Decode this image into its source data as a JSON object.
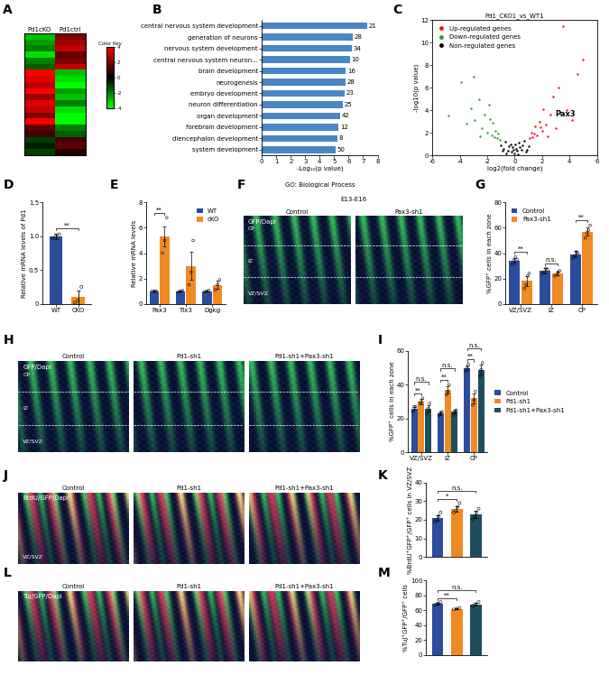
{
  "chart_data": [
    {
      "panel": "A",
      "type": "heatmap",
      "categories": [
        "Pd1cKO",
        "Pd1ctrl"
      ],
      "cells": [
        [
          -3,
          2
        ],
        [
          -2.5,
          2.5
        ],
        [
          -2,
          3
        ],
        [
          -3.5,
          1.5
        ],
        [
          -2,
          2
        ],
        [
          -1.5,
          3
        ],
        [
          4,
          -3
        ],
        [
          3.5,
          -3.5
        ],
        [
          3,
          -4
        ],
        [
          4,
          -2.5
        ],
        [
          2.5,
          -3
        ],
        [
          3.5,
          -2
        ],
        [
          3,
          -3.5
        ],
        [
          2,
          -4
        ],
        [
          4,
          -4
        ],
        [
          1.5,
          -2
        ],
        [
          1,
          -1.5
        ],
        [
          -1,
          1
        ],
        [
          -0.5,
          1.5
        ],
        [
          -1,
          0.5
        ]
      ],
      "colors": [
        "#00ff00",
        "#000000",
        "#ff0000"
      ],
      "colorbar": {
        "label": "Color Key",
        "range": [
          -4,
          4
        ],
        "ticks": [
          -4,
          -2,
          0,
          2,
          4
        ]
      }
    },
    {
      "panel": "B",
      "type": "bar",
      "orientation": "horizontal",
      "title": "GO: Biological Process",
      "xlabel": "-Log₁₀(p value)",
      "color": "#4a86c5",
      "categories": [
        "central nervous system development",
        "generation of neurons",
        "nervous system development",
        "central nervous system neuron...",
        "brain development",
        "neurogenesis",
        "embryo development",
        "neuron differentiation",
        "organ development",
        "forebrain development",
        "diencephalon development",
        "system development"
      ],
      "values": [
        7.3,
        6.3,
        6.2,
        6.1,
        5.8,
        5.8,
        5.7,
        5.6,
        5.4,
        5.3,
        5.2,
        5.1
      ],
      "counts": [
        21,
        28,
        34,
        10,
        16,
        28,
        23,
        25,
        42,
        12,
        8,
        50
      ],
      "xlim": [
        0,
        8
      ],
      "xticks": [
        0,
        1,
        2,
        3,
        4,
        5,
        6,
        7,
        8
      ]
    },
    {
      "panel": "C",
      "type": "scatter",
      "title": "Pd1_CKO1_vs_WT1",
      "xlabel": "log2(fold change)",
      "ylabel": "-log10(p value)",
      "xlim": [
        -6,
        6
      ],
      "xticks": [
        -6,
        -4,
        -2,
        0,
        2,
        4,
        6
      ],
      "ylim": [
        0,
        12
      ],
      "yticks": [
        0,
        2,
        4,
        6,
        8,
        10,
        12
      ],
      "legend": "upper left",
      "series": [
        {
          "name": "Up-regulated genes",
          "color": "#e41a1c",
          "x": [
            1.1,
            1.2,
            1.3,
            1.5,
            1.6,
            1.8,
            2.0,
            2.1,
            2.3,
            2.6,
            2.8,
            3.0,
            3.2,
            3.5,
            3.8,
            4.2,
            4.6,
            1.4,
            1.9,
            2.4,
            5.0
          ],
          "y": [
            1.5,
            2.0,
            1.6,
            2.6,
            1.8,
            3.0,
            2.2,
            4.1,
            2.7,
            3.6,
            5.2,
            2.4,
            6.0,
            11.5,
            4.0,
            3.1,
            7.2,
            1.9,
            2.5,
            1.7,
            8.5
          ]
        },
        {
          "name": "Down-regulated genes",
          "color": "#2ca02c",
          "x": [
            -4.8,
            -3.9,
            -3.5,
            -3.2,
            -2.9,
            -2.6,
            -2.4,
            -2.2,
            -2.0,
            -1.9,
            -1.7,
            -1.6,
            -1.5,
            -1.4,
            -1.3,
            -1.2,
            -1.1,
            -3.0,
            -2.5,
            -1.8
          ],
          "y": [
            3.5,
            6.5,
            2.8,
            4.2,
            3.1,
            5.0,
            2.4,
            3.6,
            2.0,
            4.5,
            1.8,
            2.9,
            1.6,
            2.2,
            1.5,
            1.9,
            1.4,
            7.0,
            1.7,
            3.2
          ]
        },
        {
          "name": "Non-regulated genes",
          "color": "#000000",
          "x": [
            -1.0,
            -0.8,
            -0.7,
            -0.5,
            -0.4,
            -0.3,
            -0.2,
            -0.1,
            0,
            0.1,
            0.2,
            0.3,
            0.4,
            0.5,
            0.6,
            0.8,
            1.0,
            -0.6,
            0.7,
            -0.9,
            0.9,
            0.05,
            -0.15,
            0.25
          ],
          "y": [
            0.9,
            0.6,
            1.2,
            0.4,
            0.8,
            1.0,
            0.3,
            0.5,
            0.2,
            0.6,
            0.4,
            1.1,
            0.7,
            0.5,
            0.9,
            0.3,
            0.8,
            0.2,
            1.3,
            0.4,
            0.5,
            1.0,
            0.7,
            0.1
          ]
        }
      ],
      "annotations": [
        {
          "text": "Pax3",
          "x": 2.6,
          "y": 3.6
        }
      ]
    },
    {
      "panel": "D",
      "type": "bar",
      "ylabel": "Relative mRNA levels of Pd1",
      "categories": [
        "WT",
        "CKO"
      ],
      "values": [
        1.0,
        0.1
      ],
      "errors": [
        0.04,
        0.1
      ],
      "points": [
        [
          0.97,
          1.0,
          1.03
        ],
        [
          0.02,
          0.05,
          0.25
        ]
      ],
      "colors": [
        "#2b4c9b",
        "#f08a24"
      ],
      "ylim": [
        0,
        1.5
      ],
      "yticks": [
        0,
        0.5,
        {
          "value": 1.0,
          "label": "1.0"
        },
        1.5
      ],
      "comparisons": [
        {
          "pair": [
            0,
            1
          ],
          "text": "**"
        }
      ]
    },
    {
      "panel": "E",
      "type": "bar",
      "ylabel": "Relative mRNA levels",
      "categories": [
        "Pax3",
        "Tlx3",
        "Dgkg"
      ],
      "legend": "upper right",
      "series": [
        {
          "name": "WT",
          "color": "#2b4c9b",
          "values": [
            1,
            1,
            1
          ],
          "errors": [
            0.03,
            0.05,
            0.05
          ],
          "points": [
            [
              1,
              1,
              1
            ],
            [
              0.95,
              1.0,
              1.05
            ],
            [
              0.95,
              1,
              1.05
            ]
          ]
        },
        {
          "name": "cKO",
          "color": "#f08a24",
          "values": [
            5.3,
            3.0,
            1.5
          ],
          "errors": [
            0.8,
            1.1,
            0.3
          ],
          "points": [
            [
              4.0,
              5.0,
              6.8
            ],
            [
              1.5,
              2.5,
              5.0
            ],
            [
              1.1,
              1.5,
              1.9
            ]
          ]
        }
      ],
      "ylim": [
        0,
        8
      ],
      "yticks": [
        0,
        2,
        4,
        6,
        8
      ],
      "comparisons": [
        {
          "category": 0,
          "pair": [
            0,
            1
          ],
          "text": "**"
        }
      ]
    },
    {
      "panel": "F",
      "type": "image",
      "header": "E13-E16",
      "titles": [
        "Control",
        "Pax3-sh1"
      ],
      "stain": "GFP/Dapi",
      "colors": [
        "#33dd33",
        "#3355ff"
      ],
      "zones": [
        "CP",
        "IZ",
        "VZ/SVZ"
      ]
    },
    {
      "panel": "G",
      "type": "bar",
      "ylabel": "%GFP⁺ cells in each zone",
      "categories": [
        "VZ/SVZ",
        "IZ",
        "CP"
      ],
      "legend": "upper left",
      "series": [
        {
          "name": "Control",
          "color": "#2b4c9b",
          "values": [
            34,
            26,
            39
          ],
          "errors": [
            2,
            2,
            2.5
          ],
          "points": [
            [
              31,
              34,
              37,
              35
            ],
            [
              24,
              25,
              28,
              27
            ],
            [
              36,
              38,
              41,
              40
            ]
          ]
        },
        {
          "name": "Pax3-sh1",
          "color": "#f08a24",
          "values": [
            18,
            24,
            57
          ],
          "errors": [
            4,
            1.5,
            3
          ],
          "points": [
            [
              12,
              15,
              22,
              24
            ],
            [
              22,
              23,
              25,
              26
            ],
            [
              52,
              56,
              58,
              62
            ]
          ]
        }
      ],
      "ylim": [
        0,
        80
      ],
      "yticks": [
        0,
        20,
        40,
        60,
        80
      ],
      "comparisons": [
        {
          "category": 0,
          "pair": [
            0,
            1
          ],
          "text": "**"
        },
        {
          "category": 1,
          "pair": [
            0,
            1
          ],
          "text": "n.s."
        },
        {
          "category": 2,
          "pair": [
            0,
            1
          ],
          "text": "**"
        }
      ]
    },
    {
      "panel": "H",
      "type": "image",
      "titles": [
        "Control",
        "Pd1-sh1",
        "Pd1-sh1+Pax3-sh1"
      ],
      "stain": "GFP/Dapi",
      "colors": [
        "#33dd33",
        "#3355ff"
      ],
      "zones": [
        "CP",
        "IZ",
        "VZ/SVZ"
      ]
    },
    {
      "panel": "I",
      "type": "bar",
      "ylabel": "%GFP⁺ cells in each zone",
      "categories": [
        "VZ/SVZ",
        "IZ",
        "CP"
      ],
      "legend": "center left",
      "series": [
        {
          "name": "Control",
          "color": "#2b4c9b",
          "values": [
            26,
            23,
            50
          ],
          "errors": [
            1,
            1,
            1.5
          ],
          "points": [
            [
              24,
              27,
              27
            ],
            [
              22,
              23,
              24
            ],
            [
              48,
              50,
              52
            ]
          ]
        },
        {
          "name": "Pd1-sh1",
          "color": "#f08a24",
          "values": [
            30,
            37,
            32
          ],
          "errors": [
            1.5,
            2,
            3
          ],
          "points": [
            [
              29,
              30,
              32
            ],
            [
              34,
              36,
              40
            ],
            [
              28,
              31,
              36
            ]
          ]
        },
        {
          "name": "Pd1-sh1+Pax3-sh1",
          "color": "#1d4e5e",
          "values": [
            26,
            24,
            49
          ],
          "errors": [
            2,
            1,
            3
          ],
          "points": [
            [
              23,
              26,
              29
            ],
            [
              22,
              24,
              25
            ],
            [
              45,
              49,
              53
            ]
          ]
        }
      ],
      "ylim": [
        0,
        60
      ],
      "yticks": [
        0,
        20,
        40,
        60
      ],
      "comparisons": [
        {
          "category": 0,
          "pair": [
            0,
            1
          ],
          "text": "**"
        },
        {
          "category": 0,
          "pair": [
            0,
            2
          ],
          "text": "n.s."
        },
        {
          "category": 1,
          "pair": [
            0,
            1
          ],
          "text": "**"
        },
        {
          "category": 1,
          "pair": [
            0,
            2
          ],
          "text": "n.s."
        },
        {
          "category": 2,
          "pair": [
            0,
            1
          ],
          "text": "**"
        },
        {
          "category": 2,
          "pair": [
            0,
            2
          ],
          "text": "n.s."
        }
      ]
    },
    {
      "panel": "J",
      "type": "image",
      "titles": [
        "Control",
        "Pd1-sh1",
        "Pd1-sh1+Pax3-sh1"
      ],
      "stain": "BrdU/GFP/Dapi",
      "colors": [
        "#ff3030",
        "#33dd33",
        "#3355ff"
      ],
      "zones": [
        "VZ/SVZ"
      ]
    },
    {
      "panel": "K",
      "type": "bar",
      "ylabel": "%BrdU⁺GFP⁺/GFP⁺ cells in VZ/SVZ",
      "categories": [
        null,
        null,
        null
      ],
      "tick_labels": "y",
      "values": [
        21,
        26,
        23
      ],
      "errors": [
        1.5,
        1.5,
        2
      ],
      "points": [
        [
          19,
          20,
          22,
          24
        ],
        [
          24,
          25,
          27,
          29
        ],
        [
          20,
          22,
          24,
          26
        ]
      ],
      "colors": [
        "#2b4c9b",
        "#f08a24",
        "#1d4e5e"
      ],
      "ylim": [
        0,
        40
      ],
      "yticks": [
        0,
        10,
        20,
        30,
        40
      ],
      "comparisons": [
        {
          "pair": [
            0,
            1
          ],
          "text": "*"
        },
        {
          "pair": [
            0,
            2
          ],
          "text": "n.s."
        }
      ]
    },
    {
      "panel": "L",
      "type": "image",
      "titles": [
        "Control",
        "Pd1-sh1",
        "Pd1-sh1+Pax3-sh1"
      ],
      "stain": "TuJ/GFP/Dapi",
      "colors": [
        "#ff3030",
        "#33dd33",
        "#3355ff"
      ],
      "zones": []
    },
    {
      "panel": "M",
      "type": "bar",
      "ylabel": "%TuJ⁺GFP⁺/GFP⁺ cells",
      "categories": [
        null,
        null,
        null
      ],
      "tick_labels": "y",
      "values": [
        69,
        62,
        68
      ],
      "errors": [
        1.5,
        1,
        2
      ],
      "points": [
        [
          67,
          69,
          71
        ],
        [
          61,
          62,
          63
        ],
        [
          66,
          68,
          71
        ]
      ],
      "colors": [
        "#2b4c9b",
        "#f08a24",
        "#1d4e5e"
      ],
      "ylim": [
        0,
        100
      ],
      "yticks": [
        0,
        20,
        40,
        60,
        80,
        100
      ],
      "comparisons": [
        {
          "pair": [
            0,
            1
          ],
          "text": "**"
        },
        {
          "pair": [
            0,
            2
          ],
          "text": "n.s."
        }
      ]
    }
  ]
}
